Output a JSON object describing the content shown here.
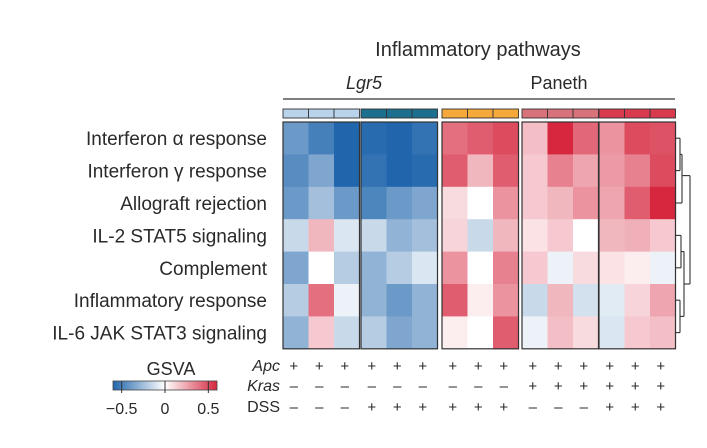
{
  "chart_data": {
    "type": "heatmap",
    "title": "Inflammatory pathways",
    "group_labels": [
      "Lgr5",
      "Paneth"
    ],
    "rows": [
      "Interferon α response",
      "Interferon γ response",
      "Allograft rejection",
      "IL-2 STAT5 signaling",
      "Complement",
      "Inflammatory response",
      "IL-6 JAK STAT3 signaling"
    ],
    "block_colors": [
      "#b9d3ea",
      "#1c6f8e",
      "#f4a93a",
      "#d9737b",
      "#d83a4e"
    ],
    "annotation_rows": [
      {
        "label": "Apc",
        "italic": true,
        "values": [
          "+",
          "+",
          "+",
          "+",
          "+",
          "+",
          "+",
          "+",
          "+",
          "+",
          "+",
          "+",
          "+",
          "+",
          "+"
        ]
      },
      {
        "label": "Kras",
        "italic": true,
        "values": [
          "–",
          "–",
          "–",
          "–",
          "–",
          "–",
          "–",
          "–",
          "–",
          "+",
          "+",
          "+",
          "+",
          "+",
          "+"
        ]
      },
      {
        "label": "DSS",
        "italic": false,
        "values": [
          "–",
          "–",
          "–",
          "+",
          "+",
          "+",
          "+",
          "+",
          "+",
          "–",
          "–",
          "–",
          "+",
          "+",
          "+"
        ]
      }
    ],
    "colorbar": {
      "title": "GSVA",
      "min": -0.6,
      "max": 0.6,
      "tick_labels": [
        "−0.5",
        "0",
        "0.5"
      ],
      "tick_values": [
        -0.5,
        0,
        0.5
      ]
    },
    "values": [
      [
        -0.4,
        -0.5,
        -0.62,
        -0.58,
        -0.6,
        -0.55,
        0.4,
        0.45,
        0.5,
        0.18,
        0.6,
        0.42,
        0.3,
        0.5,
        0.48
      ],
      [
        -0.45,
        -0.35,
        -0.6,
        -0.55,
        -0.62,
        -0.58,
        0.45,
        0.2,
        0.45,
        0.15,
        0.35,
        0.25,
        0.28,
        0.35,
        0.5
      ],
      [
        -0.4,
        -0.25,
        -0.4,
        -0.48,
        -0.4,
        -0.35,
        0.1,
        0.0,
        0.3,
        0.15,
        0.2,
        0.3,
        0.25,
        0.45,
        0.6
      ],
      [
        -0.15,
        0.2,
        -0.1,
        -0.15,
        -0.3,
        -0.25,
        0.12,
        -0.15,
        0.2,
        0.08,
        0.15,
        0.0,
        0.2,
        0.22,
        0.15
      ],
      [
        -0.35,
        0.0,
        -0.2,
        -0.3,
        -0.2,
        -0.1,
        0.3,
        0.0,
        0.35,
        0.15,
        -0.05,
        0.1,
        0.08,
        0.05,
        -0.05
      ],
      [
        -0.2,
        0.4,
        -0.05,
        -0.3,
        -0.4,
        -0.3,
        0.45,
        0.05,
        0.3,
        -0.15,
        0.2,
        -0.12,
        -0.08,
        0.12,
        0.25
      ],
      [
        -0.3,
        0.15,
        -0.15,
        -0.2,
        -0.35,
        -0.3,
        0.05,
        0.0,
        0.45,
        -0.05,
        0.18,
        0.1,
        -0.1,
        0.15,
        0.18
      ]
    ]
  }
}
